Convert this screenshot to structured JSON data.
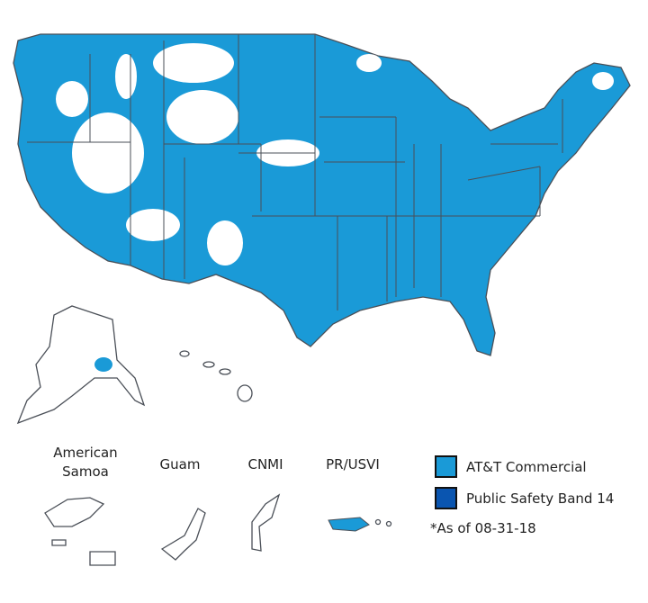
{
  "territories": [
    "American Samoa",
    "Guam",
    "CNMI",
    "PR/USVI"
  ],
  "legend": [
    {
      "label": "AT&T Commercial",
      "color": "#1a9ad7"
    },
    {
      "label": "Public Safety Band 14",
      "color": "#0a55b0"
    }
  ],
  "note": "*As of 08-31-18"
}
